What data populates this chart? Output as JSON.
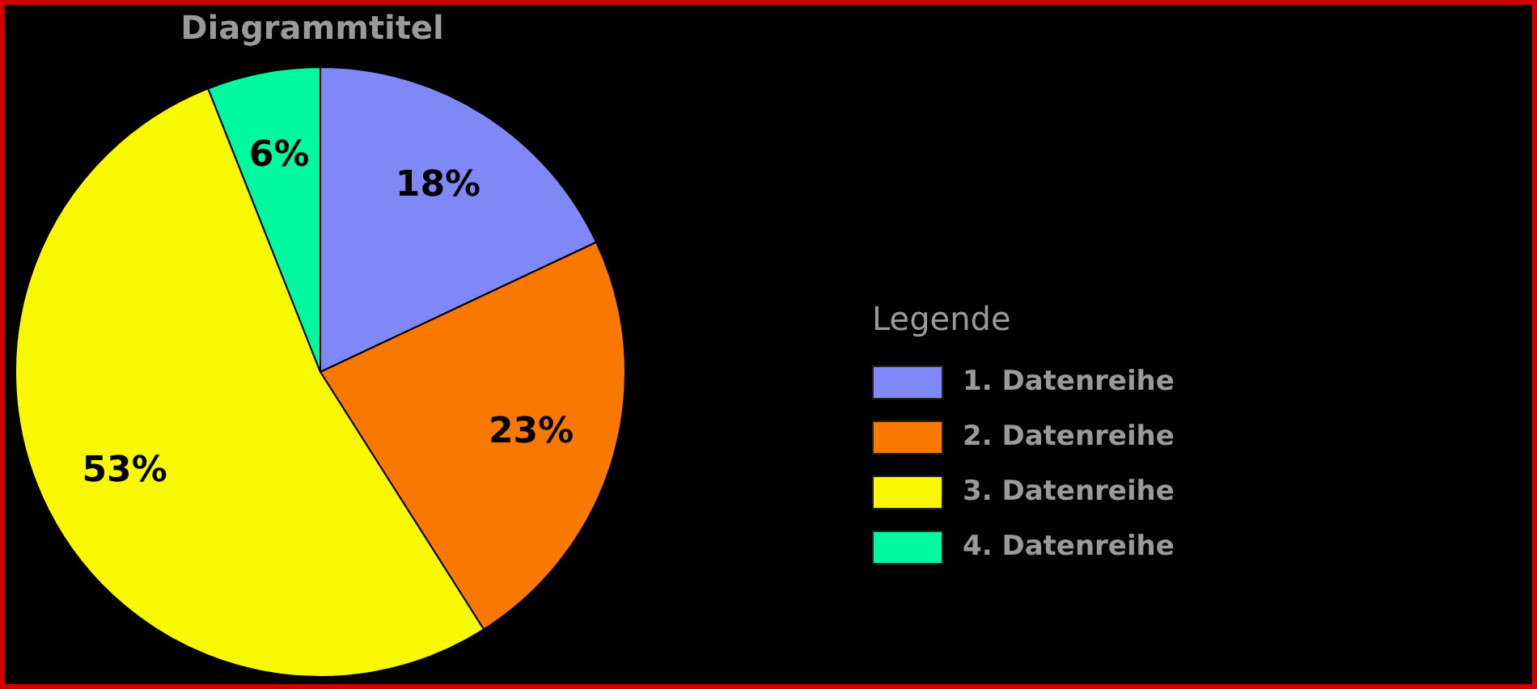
{
  "chart_data": {
    "type": "pie",
    "title": "Diagrammtitel",
    "legend_title": "Legende",
    "legend": "right",
    "categories": [
      "1. Datenreihe",
      "2. Datenreihe",
      "3. Datenreihe",
      "4. Datenreihe"
    ],
    "values": [
      18,
      23,
      53,
      6
    ],
    "colors": [
      "#8088f8",
      "#f87800",
      "#f8f800",
      "#00f8a0"
    ],
    "value_labels": [
      "18%",
      "23%",
      "53%",
      "6%"
    ]
  }
}
